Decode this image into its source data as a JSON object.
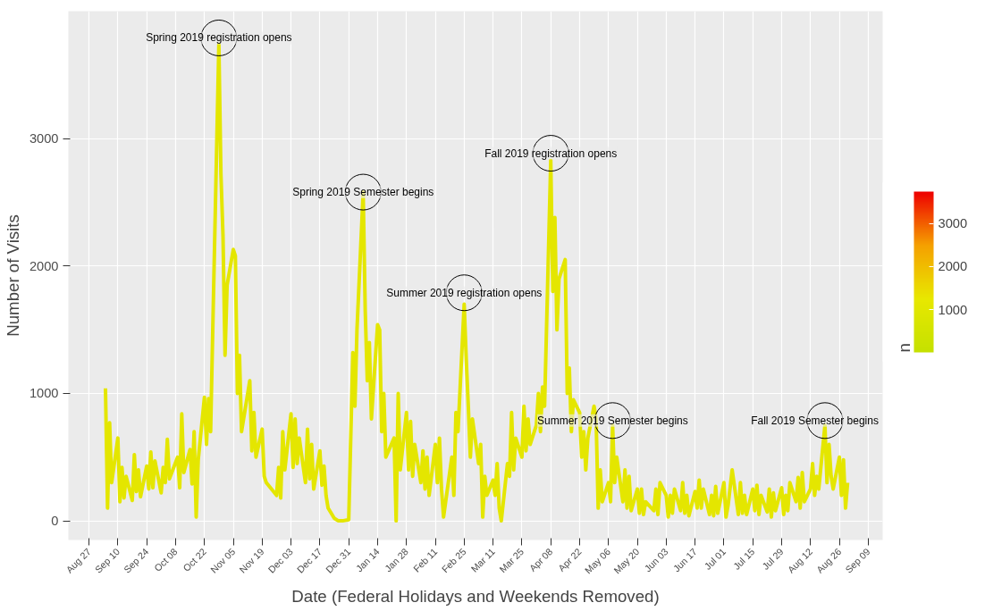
{
  "chart_data": {
    "type": "line",
    "xlabel": "Date (Federal Holidays and Weekends Removed)",
    "ylabel": "Number of Visits",
    "clabel": "n",
    "x": [
      "2018-09-04",
      "2018-09-05",
      "2018-09-06",
      "2018-09-07",
      "2018-09-10",
      "2018-09-11",
      "2018-09-12",
      "2018-09-13",
      "2018-09-14",
      "2018-09-17",
      "2018-09-18",
      "2018-09-19",
      "2018-09-20",
      "2018-09-21",
      "2018-09-24",
      "2018-09-25",
      "2018-09-26",
      "2018-09-27",
      "2018-09-28",
      "2018-10-01",
      "2018-10-02",
      "2018-10-03",
      "2018-10-04",
      "2018-10-05",
      "2018-10-09",
      "2018-10-10",
      "2018-10-11",
      "2018-10-12",
      "2018-10-15",
      "2018-10-16",
      "2018-10-17",
      "2018-10-18",
      "2018-10-19",
      "2018-10-22",
      "2018-10-23",
      "2018-10-24",
      "2018-10-25",
      "2018-10-26",
      "2018-10-29",
      "2018-10-30",
      "2018-10-31",
      "2018-11-01",
      "2018-11-02",
      "2018-11-05",
      "2018-11-06",
      "2018-11-07",
      "2018-11-08",
      "2018-11-09",
      "2018-11-13",
      "2018-11-14",
      "2018-11-15",
      "2018-11-16",
      "2018-11-19",
      "2018-11-20",
      "2018-11-21",
      "2018-11-26",
      "2018-11-27",
      "2018-11-28",
      "2018-11-29",
      "2018-11-30",
      "2018-12-03",
      "2018-12-04",
      "2018-12-05",
      "2018-12-06",
      "2018-12-07",
      "2018-12-10",
      "2018-12-11",
      "2018-12-12",
      "2018-12-13",
      "2018-12-14",
      "2018-12-17",
      "2018-12-18",
      "2018-12-19",
      "2018-12-20",
      "2018-12-21",
      "2018-12-24",
      "2018-12-26",
      "2018-12-27",
      "2018-12-28",
      "2018-12-31",
      "2019-01-02",
      "2019-01-03",
      "2019-01-04",
      "2019-01-07",
      "2019-01-08",
      "2019-01-09",
      "2019-01-10",
      "2019-01-11",
      "2019-01-14",
      "2019-01-15",
      "2019-01-16",
      "2019-01-17",
      "2019-01-18",
      "2019-01-22",
      "2019-01-23",
      "2019-01-24",
      "2019-01-25",
      "2019-01-28",
      "2019-01-29",
      "2019-01-30",
      "2019-01-31",
      "2019-02-01",
      "2019-02-04",
      "2019-02-05",
      "2019-02-06",
      "2019-02-07",
      "2019-02-08",
      "2019-02-11",
      "2019-02-12",
      "2019-02-13",
      "2019-02-14",
      "2019-02-15",
      "2019-02-19",
      "2019-02-20",
      "2019-02-21",
      "2019-02-22",
      "2019-02-25",
      "2019-02-26",
      "2019-02-27",
      "2019-02-28",
      "2019-03-01",
      "2019-03-04",
      "2019-03-05",
      "2019-03-06",
      "2019-03-07",
      "2019-03-08",
      "2019-03-11",
      "2019-03-12",
      "2019-03-13",
      "2019-03-14",
      "2019-03-15",
      "2019-03-18",
      "2019-03-19",
      "2019-03-20",
      "2019-03-21",
      "2019-03-22",
      "2019-03-25",
      "2019-03-26",
      "2019-03-27",
      "2019-03-28",
      "2019-03-29",
      "2019-04-01",
      "2019-04-02",
      "2019-04-03",
      "2019-04-04",
      "2019-04-05",
      "2019-04-08",
      "2019-04-09",
      "2019-04-10",
      "2019-04-11",
      "2019-04-12",
      "2019-04-15",
      "2019-04-16",
      "2019-04-17",
      "2019-04-18",
      "2019-04-19",
      "2019-04-22",
      "2019-04-23",
      "2019-04-24",
      "2019-04-25",
      "2019-04-26",
      "2019-04-29",
      "2019-04-30",
      "2019-05-01",
      "2019-05-02",
      "2019-05-03",
      "2019-05-06",
      "2019-05-07",
      "2019-05-08",
      "2019-05-09",
      "2019-05-10",
      "2019-05-13",
      "2019-05-14",
      "2019-05-15",
      "2019-05-16",
      "2019-05-17",
      "2019-05-20",
      "2019-05-21",
      "2019-05-22",
      "2019-05-23",
      "2019-05-24",
      "2019-05-28",
      "2019-05-29",
      "2019-05-30",
      "2019-05-31",
      "2019-06-03",
      "2019-06-04",
      "2019-06-05",
      "2019-06-06",
      "2019-06-07",
      "2019-06-10",
      "2019-06-11",
      "2019-06-12",
      "2019-06-13",
      "2019-06-14",
      "2019-06-17",
      "2019-06-18",
      "2019-06-19",
      "2019-06-20",
      "2019-06-21",
      "2019-06-24",
      "2019-06-25",
      "2019-06-26",
      "2019-06-27",
      "2019-06-28",
      "2019-07-01",
      "2019-07-02",
      "2019-07-03",
      "2019-07-05",
      "2019-07-08",
      "2019-07-09",
      "2019-07-10",
      "2019-07-11",
      "2019-07-12",
      "2019-07-15",
      "2019-07-16",
      "2019-07-17",
      "2019-07-18",
      "2019-07-19",
      "2019-07-22",
      "2019-07-23",
      "2019-07-24",
      "2019-07-25",
      "2019-07-26",
      "2019-07-29",
      "2019-07-30",
      "2019-07-31",
      "2019-08-01",
      "2019-08-02",
      "2019-08-05",
      "2019-08-06",
      "2019-08-07",
      "2019-08-08",
      "2019-08-09",
      "2019-08-12",
      "2019-08-13",
      "2019-08-14",
      "2019-08-15",
      "2019-08-16",
      "2019-08-19",
      "2019-08-20",
      "2019-08-21",
      "2019-08-22",
      "2019-08-23",
      "2019-08-26",
      "2019-08-27",
      "2019-08-28",
      "2019-08-29",
      "2019-08-30"
    ],
    "series": [
      {
        "color": "#e4e600",
        "values": [
          1040,
          100,
          770,
          300,
          650,
          150,
          420,
          180,
          350,
          160,
          520,
          230,
          400,
          190,
          430,
          250,
          540,
          260,
          470,
          220,
          420,
          300,
          640,
          330,
          500,
          260,
          840,
          380,
          560,
          290,
          700,
          30,
          480,
          970,
          600,
          960,
          700,
          1470,
          3740,
          2720,
          2240,
          1300,
          1850,
          2130,
          2080,
          1000,
          1300,
          700,
          1100,
          550,
          850,
          500,
          720,
          350,
          300,
          200,
          420,
          180,
          700,
          400,
          840,
          420,
          800,
          450,
          650,
          300,
          720,
          330,
          600,
          250,
          550,
          280,
          430,
          200,
          100,
          20,
          0,
          0,
          0,
          10,
          1320,
          900,
          1500,
          2580,
          1650,
          1100,
          1400,
          800,
          1540,
          1500,
          700,
          1000,
          500,
          650,
          0,
          1000,
          400,
          850,
          400,
          780,
          350,
          600,
          300,
          550,
          250,
          500,
          200,
          600,
          300,
          650,
          250,
          30,
          500,
          200,
          850,
          700,
          1700,
          1270,
          900,
          500,
          800,
          450,
          600,
          30,
          350,
          200,
          320,
          200,
          450,
          100,
          0,
          450,
          350,
          850,
          400,
          650,
          500,
          900,
          550,
          800,
          600,
          750,
          1000,
          700,
          1050,
          900,
          2830,
          1800,
          2380,
          1500,
          1900,
          2050,
          1000,
          1200,
          700,
          950,
          850,
          500,
          700,
          400,
          650,
          900,
          800,
          100,
          400,
          150,
          300,
          150,
          750,
          300,
          500,
          150,
          400,
          100,
          350,
          80,
          250,
          60,
          250,
          50,
          150,
          80,
          250,
          50,
          300,
          200,
          30,
          200,
          60,
          250,
          80,
          300,
          60,
          200,
          40,
          230,
          100,
          320,
          100,
          250,
          50,
          200,
          40,
          270,
          60,
          300,
          30,
          120,
          400,
          50,
          300,
          60,
          200,
          50,
          250,
          80,
          280,
          50,
          200,
          70,
          250,
          30,
          220,
          80,
          260,
          50,
          200,
          80,
          300,
          150,
          340,
          100,
          380,
          150,
          250,
          450,
          200,
          350,
          250,
          750,
          300,
          600,
          350,
          250,
          500,
          200,
          480,
          100,
          300
        ]
      }
    ],
    "xlim": [
      "2018-08-17",
      "2019-09-16"
    ],
    "xticks": [
      {
        "value": "2018-08-27",
        "label": "Aug 27"
      },
      {
        "value": "2018-09-10",
        "label": "Sep 10"
      },
      {
        "value": "2018-09-24",
        "label": "Sep 24"
      },
      {
        "value": "2018-10-08",
        "label": "Oct 08"
      },
      {
        "value": "2018-10-22",
        "label": "Oct 22"
      },
      {
        "value": "2018-11-05",
        "label": "Nov 05"
      },
      {
        "value": "2018-11-19",
        "label": "Nov 19"
      },
      {
        "value": "2018-12-03",
        "label": "Dec 03"
      },
      {
        "value": "2018-12-17",
        "label": "Dec 17"
      },
      {
        "value": "2018-12-31",
        "label": "Dec 31"
      },
      {
        "value": "2019-01-14",
        "label": "Jan 14"
      },
      {
        "value": "2019-01-28",
        "label": "Jan 28"
      },
      {
        "value": "2019-02-11",
        "label": "Feb 11"
      },
      {
        "value": "2019-02-25",
        "label": "Feb 25"
      },
      {
        "value": "2019-03-11",
        "label": "Mar 11"
      },
      {
        "value": "2019-03-25",
        "label": "Mar 25"
      },
      {
        "value": "2019-04-08",
        "label": "Apr 08"
      },
      {
        "value": "2019-04-22",
        "label": "Apr 22"
      },
      {
        "value": "2019-05-06",
        "label": "May 06"
      },
      {
        "value": "2019-05-20",
        "label": "May 20"
      },
      {
        "value": "2019-06-03",
        "label": "Jun 03"
      },
      {
        "value": "2019-06-17",
        "label": "Jun 17"
      },
      {
        "value": "2019-07-01",
        "label": "Jul 01"
      },
      {
        "value": "2019-07-15",
        "label": "Jul 15"
      },
      {
        "value": "2019-07-29",
        "label": "Jul 29"
      },
      {
        "value": "2019-08-12",
        "label": "Aug 12"
      },
      {
        "value": "2019-08-26",
        "label": "Aug 26"
      },
      {
        "value": "2019-09-09",
        "label": "Sep 09"
      }
    ],
    "ylim": [
      -150,
      4000
    ],
    "yticks": [
      0,
      1000,
      2000,
      3000
    ],
    "clim": [
      10,
      3740
    ],
    "cticks": [
      1000,
      2000,
      3000
    ],
    "grid": true,
    "line_style": "solid",
    "annotations": [
      {
        "text": "Spring 2019 registration opens",
        "x": "2018-10-29",
        "y": 3790
      },
      {
        "text": "Spring 2019 Semester begins",
        "x": "2019-01-07",
        "y": 2580
      },
      {
        "text": "Summer 2019 registration opens",
        "x": "2019-02-25",
        "y": 1790
      },
      {
        "text": "Fall 2019 registration opens",
        "x": "2019-04-08",
        "y": 2885
      },
      {
        "text": "Summer 2019 Semester begins",
        "x": "2019-05-08",
        "y": 787
      },
      {
        "text": "Fall 2019 Semester begins",
        "x": "2019-08-19",
        "y": 787
      }
    ]
  }
}
